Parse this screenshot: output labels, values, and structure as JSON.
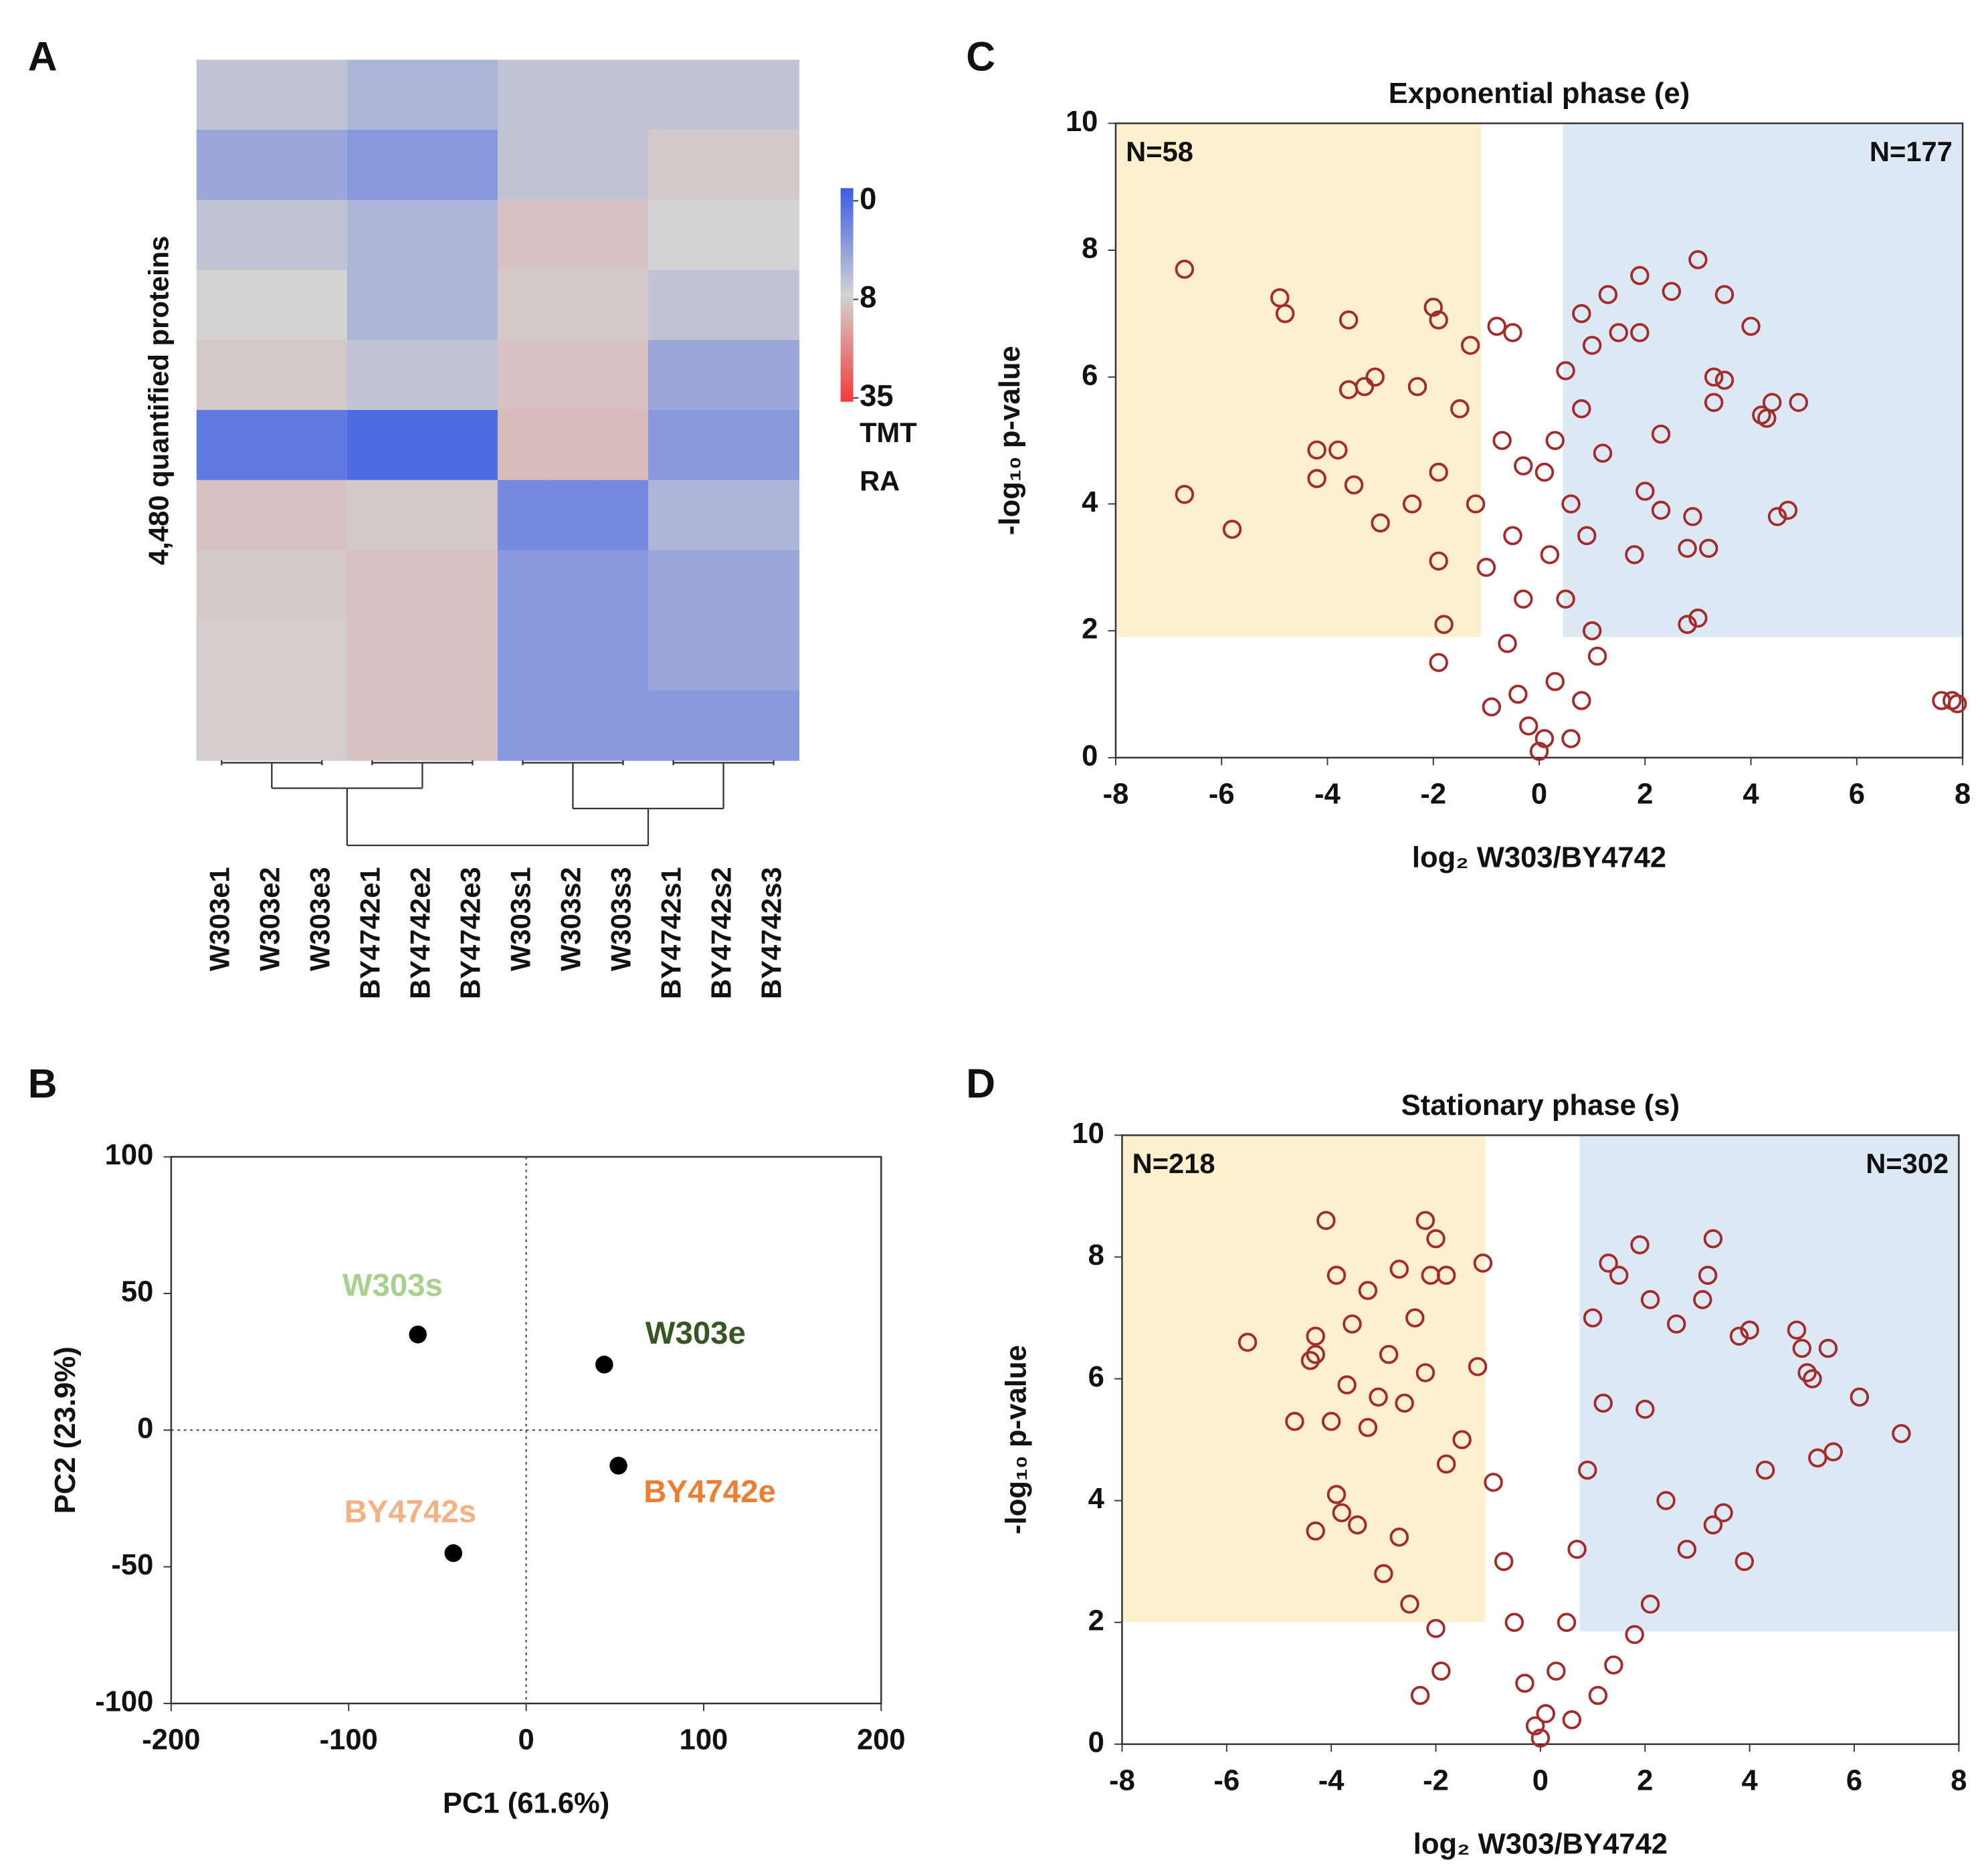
{
  "chart_data": [
    {
      "type": "heatmap",
      "panel": "A",
      "y_label": "4,480 quantified proteins",
      "categories": [
        "W303e1",
        "W303e2",
        "W303e3",
        "BY4742e1",
        "BY4742e2",
        "BY4742e3",
        "W303s1",
        "W303s2",
        "W303s3",
        "BY4742s1",
        "BY4742s2",
        "BY4742s3"
      ],
      "values": [
        [
          7,
          7,
          7,
          6,
          6,
          6,
          7,
          7,
          7,
          7,
          7,
          7
        ],
        [
          5,
          5,
          5,
          4,
          4,
          4,
          7,
          7,
          7,
          10,
          10,
          10
        ],
        [
          7,
          7,
          7,
          6,
          6,
          6,
          11,
          11,
          11,
          8,
          8,
          8
        ],
        [
          8,
          8,
          8,
          6,
          6,
          6,
          10,
          10,
          10,
          7,
          7,
          7
        ],
        [
          10,
          10,
          10,
          7,
          7,
          7,
          11,
          11,
          11,
          5,
          5,
          5
        ],
        [
          2,
          2,
          2,
          1,
          1,
          1,
          12,
          12,
          12,
          4,
          4,
          4
        ],
        [
          11,
          11,
          11,
          10,
          10,
          10,
          3,
          3,
          3,
          6,
          6,
          6
        ],
        [
          10,
          10,
          10,
          11,
          11,
          11,
          4,
          4,
          4,
          5,
          5,
          5
        ],
        [
          9,
          9,
          9,
          11,
          11,
          11,
          4,
          4,
          4,
          5,
          5,
          5
        ],
        [
          9,
          9,
          9,
          11,
          11,
          11,
          4,
          4,
          4,
          4,
          4,
          4
        ]
      ],
      "colorbar_ticks": [
        0,
        8,
        35
      ],
      "colorbar_colors": [
        "#3b5ce6",
        "#d3d3d3",
        "#f23a3a"
      ],
      "colorbar_label": [
        "TMT",
        "RA"
      ]
    },
    {
      "type": "scatter",
      "panel": "B",
      "x_label": "PC1 (61.6%)",
      "y_label": "PC2 (23.9%)",
      "xlim": [
        -200,
        200
      ],
      "ylim": [
        -100,
        100
      ],
      "xticks": [
        -200,
        -100,
        0,
        100,
        200
      ],
      "yticks": [
        -100,
        -50,
        0,
        50,
        100
      ],
      "zero_lines": true,
      "marker_color": "#000000",
      "series": [
        {
          "name": "W303s",
          "color": "#a9d18e",
          "x": [
            -61
          ],
          "values": [
            35
          ]
        },
        {
          "name": "W303e",
          "color": "#375623",
          "x": [
            44
          ],
          "values": [
            24
          ]
        },
        {
          "name": "BY4742e",
          "color": "#ed7d31",
          "x": [
            52
          ],
          "values": [
            -13
          ]
        },
        {
          "name": "BY4742s",
          "color": "#f4b183",
          "x": [
            -41
          ],
          "values": [
            -45
          ]
        }
      ]
    },
    {
      "type": "scatter",
      "panel": "C",
      "title": "Exponential phase (e)",
      "x_label": "log₂ W303/BY4742",
      "y_label": "-log₁₀ p-value",
      "xlim": [
        -8,
        8
      ],
      "ylim": [
        0,
        10
      ],
      "xticks": [
        -8,
        -6,
        -4,
        -2,
        0,
        2,
        4,
        6,
        8
      ],
      "yticks": [
        0,
        2,
        4,
        6,
        8,
        10
      ],
      "regions": [
        {
          "x": [
            -8,
            -1.1
          ],
          "y": [
            1.9,
            10
          ],
          "color": "#fdf0cf",
          "annotation": "N=58"
        },
        {
          "x": [
            0.45,
            8
          ],
          "y": [
            1.9,
            10
          ],
          "color": "#dde8f5",
          "annotation": "N=177"
        }
      ],
      "marker": "open-circle",
      "series": [
        {
          "color": "#a52a2a",
          "x": [
            -6.7,
            -4.9,
            -4.8,
            -3.6,
            -2.0,
            -1.9,
            -3.1,
            -3.3,
            -3.6,
            -2.3,
            -4.2,
            -3.8,
            -4.2,
            -3.5,
            -6.7,
            -5.8,
            -3.0,
            -2.4,
            -1.9,
            -1.9,
            -1.8,
            -1.9,
            -1.3,
            -0.8,
            -0.5,
            -1.5,
            -1.2,
            -0.7,
            -0.5,
            -0.3,
            -0.6,
            -0.4,
            -0.2,
            0,
            0.1,
            0.3,
            0.5,
            0.2,
            0.6,
            0.3,
            0.8,
            0.5,
            1.0,
            0.8,
            1.3,
            1.9,
            1.5,
            1.9,
            2.5,
            3.0,
            3.5,
            4.0,
            3.3,
            3.5,
            3.3,
            4.2,
            4.4,
            4.9,
            4.3,
            2.3,
            4.7,
            4.5,
            2.9,
            2.3,
            2.0,
            2.8,
            3.2,
            2.8,
            3.0,
            1.8,
            1.0,
            1.1,
            0.8,
            0.6,
            -0.9,
            -0.3,
            0.1,
            7.6,
            7.8,
            7.9,
            1.2,
            -1.0,
            0.9
          ],
          "values": [
            7.7,
            7.25,
            7.0,
            6.9,
            7.1,
            6.9,
            6.0,
            5.85,
            5.8,
            5.85,
            4.85,
            4.85,
            4.4,
            4.3,
            4.15,
            3.6,
            3.7,
            4.0,
            4.5,
            3.1,
            2.1,
            1.5,
            6.5,
            6.8,
            6.7,
            5.5,
            4.0,
            5.0,
            3.5,
            2.5,
            1.8,
            1.0,
            0.5,
            0.1,
            0.3,
            1.2,
            2.5,
            3.2,
            4.0,
            5.0,
            5.5,
            6.1,
            6.5,
            7.0,
            7.3,
            7.6,
            6.7,
            6.7,
            7.35,
            7.85,
            7.3,
            6.8,
            6.0,
            5.95,
            5.6,
            5.4,
            5.6,
            5.6,
            5.35,
            5.1,
            3.9,
            3.8,
            3.8,
            3.9,
            4.2,
            3.3,
            3.3,
            2.1,
            2.2,
            3.2,
            2.0,
            1.6,
            0.9,
            0.3,
            0.8,
            4.6,
            4.5,
            0.9,
            0.9,
            0.85,
            4.8,
            3.0,
            3.5
          ]
        }
      ]
    },
    {
      "type": "scatter",
      "panel": "D",
      "title": "Stationary phase (s)",
      "x_label": "log₂ W303/BY4742",
      "y_label": "-log₁₀ p-value",
      "xlim": [
        -8,
        8
      ],
      "ylim": [
        0,
        10
      ],
      "xticks": [
        -8,
        -6,
        -4,
        -2,
        0,
        2,
        4,
        6,
        8
      ],
      "yticks": [
        0,
        2,
        4,
        6,
        8,
        10
      ],
      "regions": [
        {
          "x": [
            -8,
            -1.05
          ],
          "y": [
            2.0,
            10
          ],
          "color": "#fdf0cf",
          "annotation": "N=218"
        },
        {
          "x": [
            0.75,
            8
          ],
          "y": [
            1.85,
            10
          ],
          "color": "#dde8f5",
          "annotation": "N=302"
        }
      ],
      "marker": "open-circle",
      "series": [
        {
          "color": "#a52a2a",
          "x": [
            -5.6,
            -4.1,
            -2.2,
            -2.0,
            -1.1,
            -3.9,
            -2.7,
            -2.1,
            -1.8,
            -3.3,
            -4.3,
            -4.3,
            -3.6,
            -2.4,
            -2.9,
            -4.4,
            -3.7,
            -3.1,
            -2.2,
            -4.7,
            -4.0,
            -3.3,
            -2.6,
            -3.9,
            -3.8,
            -3.5,
            -4.3,
            -2.7,
            -3.0,
            -2.5,
            -2.0,
            -2.3,
            -1.9,
            -1.5,
            -1.2,
            -0.9,
            -0.7,
            -0.5,
            -0.3,
            -0.1,
            0,
            0.1,
            0.3,
            0.5,
            0.7,
            0.9,
            1.2,
            1.0,
            1.5,
            1.3,
            1.9,
            2.1,
            3.3,
            3.2,
            3.1,
            2.6,
            3.8,
            4.0,
            4.9,
            5.0,
            5.5,
            5.1,
            5.2,
            6.1,
            6.9,
            5.6,
            5.3,
            4.3,
            3.5,
            3.3,
            3.9,
            2.8,
            2.4,
            2.1,
            1.8,
            1.4,
            1.1,
            0.6,
            2.0,
            -1.8
          ],
          "values": [
            6.6,
            8.6,
            8.6,
            8.3,
            7.9,
            7.7,
            7.8,
            7.7,
            7.7,
            7.45,
            6.7,
            6.4,
            6.9,
            7.0,
            6.4,
            6.3,
            5.9,
            5.7,
            6.1,
            5.3,
            5.3,
            5.2,
            5.6,
            4.1,
            3.8,
            3.6,
            3.5,
            3.4,
            2.8,
            2.3,
            1.9,
            0.8,
            1.2,
            5.0,
            6.2,
            4.3,
            3.0,
            2.0,
            1.0,
            0.3,
            0.1,
            0.5,
            1.2,
            2.0,
            3.2,
            4.5,
            5.6,
            7.0,
            7.7,
            7.9,
            8.2,
            7.3,
            8.3,
            7.7,
            7.3,
            6.9,
            6.7,
            6.8,
            6.8,
            6.5,
            6.5,
            6.1,
            6.0,
            5.7,
            5.1,
            4.8,
            4.7,
            4.5,
            3.8,
            3.6,
            3.0,
            3.2,
            4.0,
            2.3,
            1.8,
            1.3,
            0.8,
            0.4,
            5.5,
            4.6
          ]
        }
      ]
    }
  ]
}
